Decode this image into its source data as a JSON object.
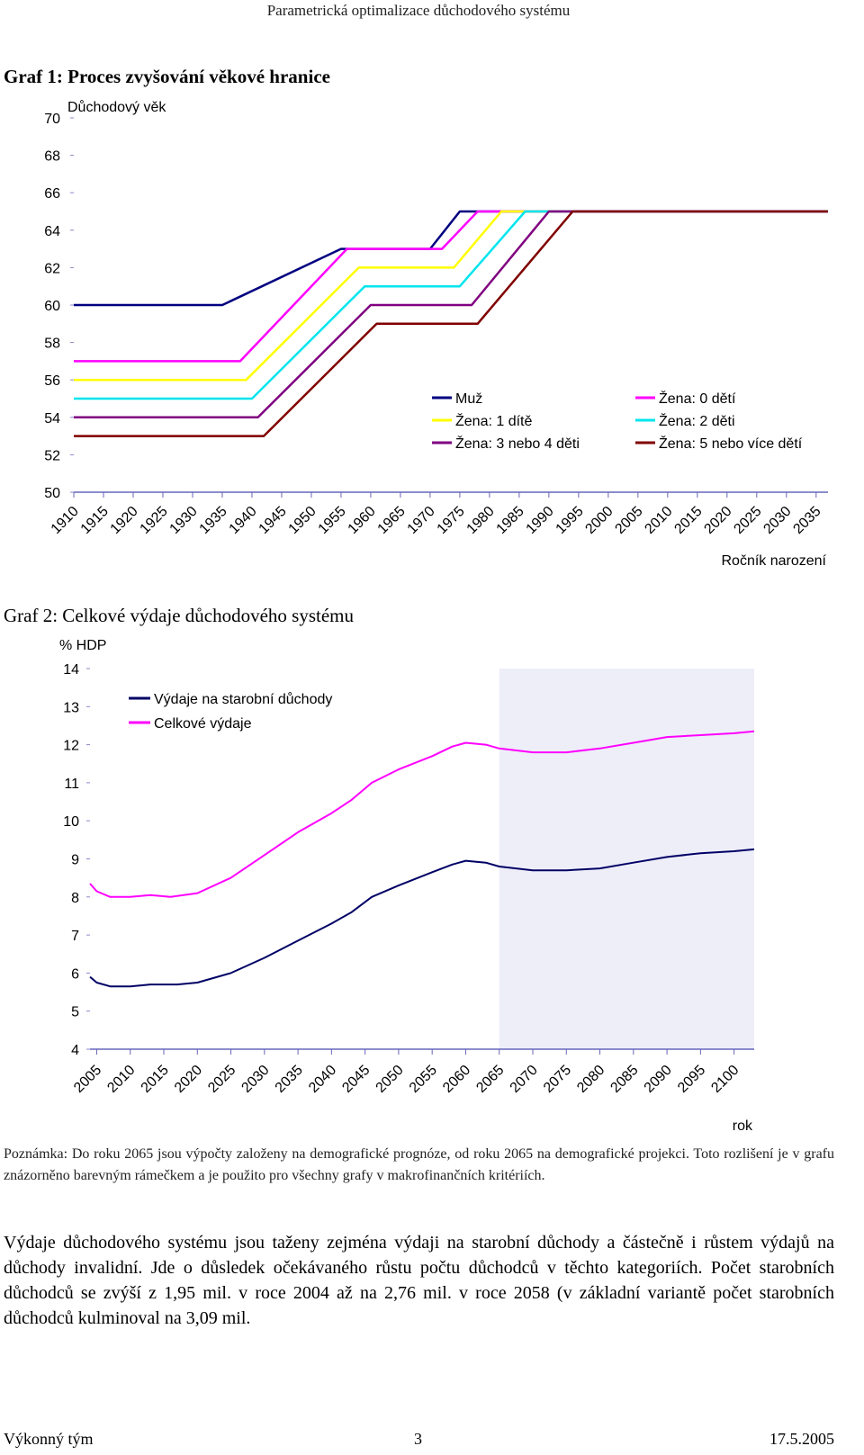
{
  "page_header": "Parametrická optimalizace důchodového systému",
  "figure1_title": "Graf 1: Proces zvyšování věkové hranice",
  "figure2_title": "Graf 2: Celkové výdaje důchodového systému",
  "note_text": "Poznámka: Do roku 2065 jsou výpočty založeny na demografické prognóze, od roku 2065 na demografické projekci. Toto rozlišení je v grafu znázorněno barevným rámečkem a je použito pro všechny grafy v makrofinančních kritériích.",
  "body_text": "Výdaje důchodového systému jsou taženy zejména výdaji na starobní důchody a částečně i růstem výdajů na důchody invalidní. Jde o důsledek očekávaného růstu počtu důchodců v těchto kategoriích. Počet starobních důchodců se zvýší z 1,95 mil. v roce 2004 až na 2,76 mil. v roce 2058 (v základní variantě počet starobních důchodců kulminoval na 3,09 mil.",
  "footer": {
    "left": "Výkonný tým",
    "center": "3",
    "right": "17.5.2005"
  },
  "chart_data": [
    {
      "type": "line",
      "title": "Graf 1: Proces zvyšování věkové hranice",
      "ylabel": "Důchodový věk",
      "xlabel": "Ročník narození",
      "ylim": [
        50,
        70
      ],
      "yticks": [
        50,
        52,
        54,
        56,
        58,
        60,
        62,
        64,
        66,
        68,
        70
      ],
      "xlim": [
        1910,
        2037
      ],
      "categories": [
        "1910",
        "1915",
        "1920",
        "1925",
        "1930",
        "1935",
        "1940",
        "1945",
        "1950",
        "1955",
        "1960",
        "1965",
        "1970",
        "1975",
        "1980",
        "1985",
        "1990",
        "1995",
        "2000",
        "2005",
        "2010",
        "2015",
        "2020",
        "2025",
        "2030",
        "2035"
      ],
      "series": [
        {
          "name": "Muž",
          "color": "#000080",
          "points": [
            [
              1910,
              60
            ],
            [
              1935,
              60
            ],
            [
              1955,
              63
            ],
            [
              1970,
              63
            ],
            [
              1975,
              65
            ],
            [
              2037,
              65
            ]
          ]
        },
        {
          "name": "Žena: 0 dětí",
          "color": "#ff00ff",
          "points": [
            [
              1910,
              57
            ],
            [
              1938,
              57
            ],
            [
              1956,
              63
            ],
            [
              1972,
              63
            ],
            [
              1978,
              65
            ],
            [
              2037,
              65
            ]
          ]
        },
        {
          "name": "Žena: 1 dítě",
          "color": "#ffff00",
          "points": [
            [
              1910,
              56
            ],
            [
              1939,
              56
            ],
            [
              1958,
              62
            ],
            [
              1974,
              62
            ],
            [
              1982,
              65
            ],
            [
              2037,
              65
            ]
          ]
        },
        {
          "name": "Žena: 2 děti",
          "color": "#00e5ee",
          "points": [
            [
              1910,
              55
            ],
            [
              1940,
              55
            ],
            [
              1959,
              61
            ],
            [
              1975,
              61
            ],
            [
              1986,
              65
            ],
            [
              2037,
              65
            ]
          ]
        },
        {
          "name": "Žena: 3 nebo 4 děti",
          "color": "#800080",
          "points": [
            [
              1910,
              54
            ],
            [
              1941,
              54
            ],
            [
              1960,
              60
            ],
            [
              1977,
              60
            ],
            [
              1990,
              65
            ],
            [
              2037,
              65
            ]
          ]
        },
        {
          "name": "Žena: 5 nebo více dětí",
          "color": "#800000",
          "points": [
            [
              1910,
              53
            ],
            [
              1942,
              53
            ],
            [
              1961,
              59
            ],
            [
              1978,
              59
            ],
            [
              1994,
              65
            ],
            [
              2037,
              65
            ]
          ]
        }
      ]
    },
    {
      "type": "line",
      "title": "Graf 2: Celkové výdaje důchodového systému",
      "ylabel": "% HDP",
      "xlabel": "rok",
      "ylim": [
        4,
        14
      ],
      "yticks": [
        4,
        5,
        6,
        7,
        8,
        9,
        10,
        11,
        12,
        13,
        14
      ],
      "xlim": [
        2004,
        2103
      ],
      "projection_from": 2065,
      "categories": [
        "2005",
        "2010",
        "2015",
        "2020",
        "2025",
        "2030",
        "2035",
        "2040",
        "2045",
        "2050",
        "2055",
        "2060",
        "2065",
        "2070",
        "2075",
        "2080",
        "2085",
        "2090",
        "2095",
        "2100"
      ],
      "series": [
        {
          "name": "Výdaje na starobní důchody",
          "color": "#000066",
          "points": [
            [
              2004,
              5.9
            ],
            [
              2005,
              5.75
            ],
            [
              2007,
              5.65
            ],
            [
              2010,
              5.65
            ],
            [
              2013,
              5.7
            ],
            [
              2017,
              5.7
            ],
            [
              2020,
              5.75
            ],
            [
              2025,
              6.0
            ],
            [
              2030,
              6.4
            ],
            [
              2035,
              6.85
            ],
            [
              2040,
              7.3
            ],
            [
              2043,
              7.6
            ],
            [
              2046,
              8.0
            ],
            [
              2050,
              8.3
            ],
            [
              2055,
              8.65
            ],
            [
              2058,
              8.85
            ],
            [
              2060,
              8.95
            ],
            [
              2063,
              8.9
            ],
            [
              2065,
              8.8
            ],
            [
              2070,
              8.7
            ],
            [
              2075,
              8.7
            ],
            [
              2080,
              8.75
            ],
            [
              2085,
              8.9
            ],
            [
              2090,
              9.05
            ],
            [
              2095,
              9.15
            ],
            [
              2100,
              9.2
            ],
            [
              2103,
              9.25
            ]
          ]
        },
        {
          "name": "Celkové výdaje",
          "color": "#ff00ff",
          "points": [
            [
              2004,
              8.35
            ],
            [
              2005,
              8.15
            ],
            [
              2007,
              8.0
            ],
            [
              2010,
              8.0
            ],
            [
              2013,
              8.05
            ],
            [
              2016,
              8.0
            ],
            [
              2020,
              8.1
            ],
            [
              2025,
              8.5
            ],
            [
              2030,
              9.1
            ],
            [
              2035,
              9.7
            ],
            [
              2040,
              10.2
            ],
            [
              2043,
              10.55
            ],
            [
              2046,
              11.0
            ],
            [
              2050,
              11.35
            ],
            [
              2055,
              11.7
            ],
            [
              2058,
              11.95
            ],
            [
              2060,
              12.05
            ],
            [
              2063,
              12.0
            ],
            [
              2065,
              11.9
            ],
            [
              2070,
              11.8
            ],
            [
              2075,
              11.8
            ],
            [
              2080,
              11.9
            ],
            [
              2085,
              12.05
            ],
            [
              2090,
              12.2
            ],
            [
              2095,
              12.25
            ],
            [
              2100,
              12.3
            ],
            [
              2103,
              12.35
            ]
          ]
        }
      ]
    }
  ]
}
